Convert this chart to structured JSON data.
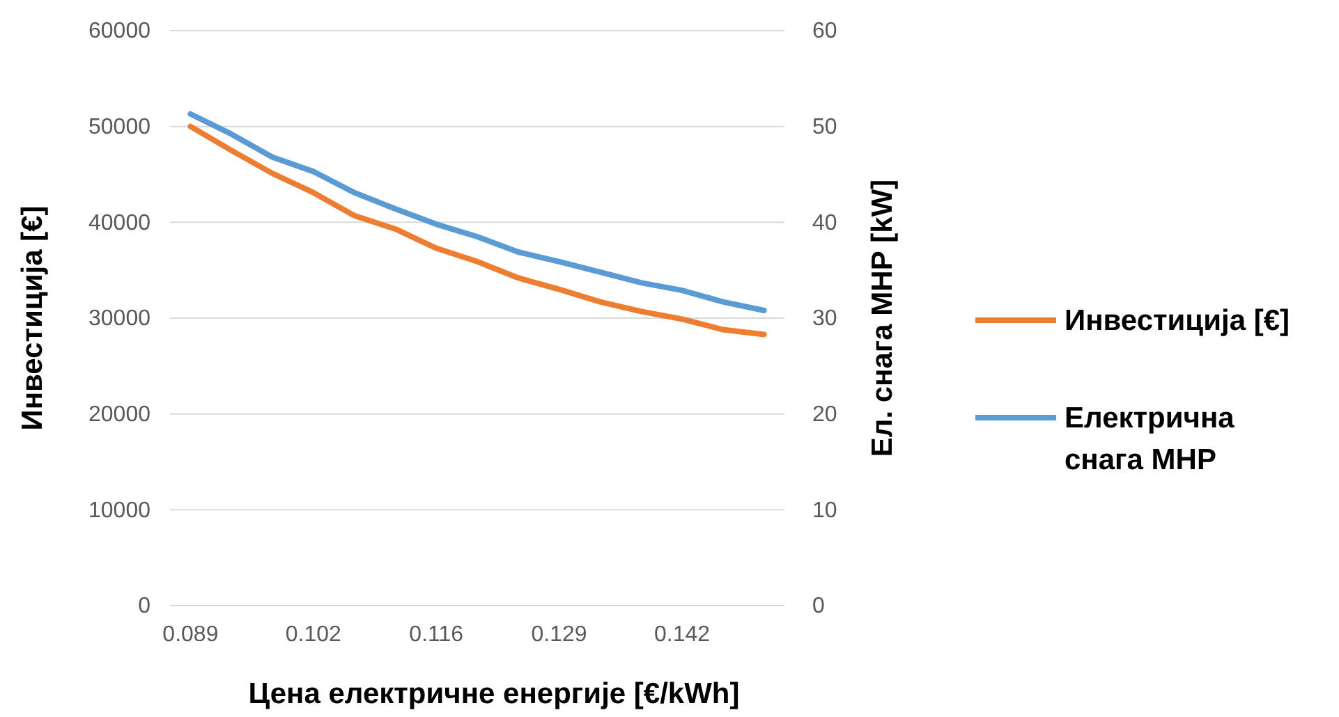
{
  "chart_data": {
    "type": "line",
    "xlabel": "Цена електричне енергије [€/kWh]",
    "ylabel": "Инвестиција [€]",
    "y2label": "Ел. снага МНР [kW]",
    "categories": [
      "0.089",
      null,
      null,
      "0.102",
      null,
      null,
      "0.116",
      null,
      null,
      "0.129",
      null,
      null,
      "0.142",
      null,
      null
    ],
    "series": [
      {
        "name": "Инвестиција [€]",
        "color": "#ed7d31",
        "values": [
          50000,
          47500,
          45100,
          43100,
          40700,
          39300,
          37300,
          35900,
          34200,
          33000,
          31700,
          30700,
          29900,
          28800,
          28300
        ]
      },
      {
        "name": "Електрична снага МНР",
        "color": "#5b9bd5",
        "axis": "y2",
        "values": [
          51.3,
          49.2,
          46.8,
          45.3,
          43.1,
          41.4,
          39.8,
          38.5,
          36.9,
          35.9,
          34.8,
          33.7,
          32.9,
          31.7,
          30.8
        ]
      }
    ],
    "ylim": [
      0,
      60000
    ],
    "yticks": [
      0,
      10000,
      20000,
      30000,
      40000,
      50000,
      60000
    ],
    "y2lim": [
      0,
      60
    ],
    "y2ticks": [
      0,
      10,
      20,
      30,
      40,
      50,
      60
    ],
    "grid": "y",
    "legend": "right",
    "marker": "none",
    "line_style": "solid"
  }
}
